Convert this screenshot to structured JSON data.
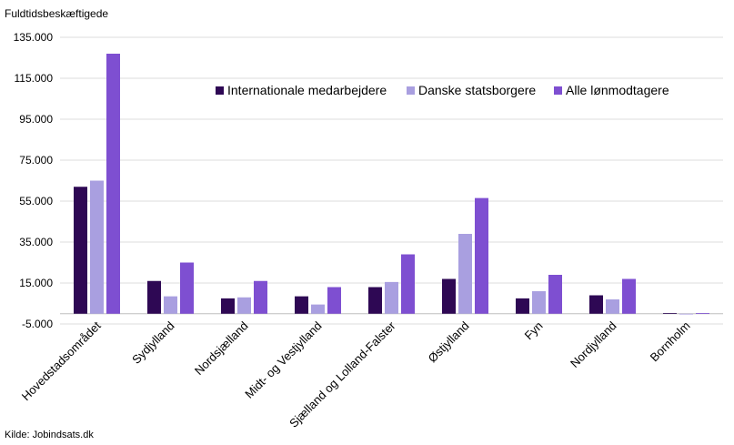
{
  "chart_data": {
    "type": "bar",
    "ylabel": "Fuldtidsbeskæftigede",
    "source": "Kilde: Jobindsats.dk",
    "categories": [
      "Hovedstadsområdet",
      "Sydjylland",
      "Nordsjælland",
      "Midt- og Vestjylland",
      "Sjælland og Lolland-Falster",
      "Østjylland",
      "Fyn",
      "Nordjylland",
      "Bornholm"
    ],
    "series": [
      {
        "name": "Internationale medarbejdere",
        "color": "#2e0854",
        "values": [
          62000,
          16000,
          7500,
          8500,
          13000,
          17000,
          7500,
          9000,
          300
        ]
      },
      {
        "name": "Danske statsborgere",
        "color": "#a99fe0",
        "values": [
          65000,
          8500,
          8000,
          4500,
          15500,
          39000,
          11000,
          7000,
          0
        ]
      },
      {
        "name": "Alle lønmodtagere",
        "color": "#7e4fd1",
        "values": [
          127000,
          25000,
          16000,
          13000,
          29000,
          56500,
          19000,
          17000,
          300
        ]
      }
    ],
    "yticks": [
      "135.000",
      "115.000",
      "95.000",
      "75.000",
      "55.000",
      "35.000",
      "15.000",
      "-5.000"
    ],
    "ytick_values": [
      135000,
      115000,
      95000,
      75000,
      55000,
      35000,
      15000,
      -5000
    ],
    "ylim": [
      -5000,
      135000
    ],
    "grid": true,
    "legend_position": "top-right"
  }
}
